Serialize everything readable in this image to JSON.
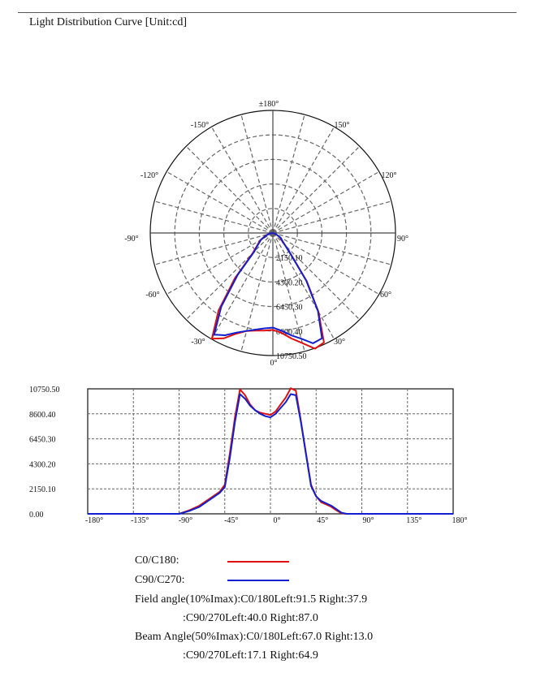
{
  "title": "Light Distribution Curve [Unit:cd]",
  "colors": {
    "c0_c180": "#e01010",
    "c90_c270": "#1020d0",
    "grid": "#666666"
  },
  "chart_data": [
    {
      "type": "line",
      "projection": "polar",
      "title": "",
      "angle_labels": [
        "±180°",
        "150°",
        "120°",
        "90°",
        "60°",
        "30°",
        "0°",
        "-30°",
        "-60°",
        "-90°",
        "-120°",
        "-150°"
      ],
      "radial_labels": [
        "2150.10",
        "4300.20",
        "6450.30",
        "8600.40",
        "10750.50"
      ],
      "rmax": 10750.5,
      "angle_step": 15,
      "series": [
        {
          "name": "C0/C180:",
          "x": [
            -90,
            -80,
            -70,
            -60,
            -50,
            -45,
            -40,
            -35,
            -30,
            -25,
            -20,
            -15,
            -10,
            -5,
            0,
            5,
            10,
            15,
            20,
            25,
            30,
            35,
            40,
            45,
            50,
            55,
            60,
            65,
            70,
            75,
            80,
            85,
            90
          ],
          "values": [
            0,
            300,
            700,
            1300,
            1900,
            2500,
            5200,
            8300,
            10700,
            10200,
            9400,
            8900,
            8700,
            8600,
            8500,
            8800,
            9400,
            10000,
            10800,
            10600,
            8000,
            5200,
            2500,
            1500,
            1000,
            800,
            600,
            300,
            50,
            0,
            0,
            0,
            0
          ]
        },
        {
          "name": "C90/C270:",
          "x": [
            -90,
            -80,
            -70,
            -60,
            -50,
            -45,
            -40,
            -35,
            -30,
            -25,
            -20,
            -15,
            -10,
            -5,
            0,
            5,
            10,
            15,
            20,
            25,
            30,
            35,
            40,
            45,
            50,
            55,
            60,
            65,
            70,
            75,
            80,
            85,
            90
          ],
          "values": [
            0,
            250,
            600,
            1200,
            1800,
            2300,
            4800,
            7900,
            10300,
            9900,
            9300,
            8900,
            8600,
            8400,
            8300,
            8600,
            9100,
            9600,
            10300,
            10200,
            7900,
            5100,
            2400,
            1500,
            1100,
            900,
            700,
            400,
            100,
            0,
            0,
            0,
            0
          ]
        }
      ]
    },
    {
      "type": "line",
      "title": "",
      "xlabel": "",
      "ylabel": "",
      "xlim": [
        -180,
        180
      ],
      "ylim": [
        0,
        10750.5
      ],
      "x_ticks": [
        "-180°",
        "-135°",
        "-90°",
        "-45°",
        "0°",
        "45°",
        "90°",
        "135°",
        "180°"
      ],
      "y_ticks": [
        "0.00",
        "2150.10",
        "4300.20",
        "6450.30",
        "8600.40",
        "10750.50"
      ],
      "grid": true,
      "series": [
        {
          "name": "C0/C180:",
          "x": [
            -180,
            -90,
            -80,
            -70,
            -60,
            -50,
            -45,
            -40,
            -35,
            -30,
            -25,
            -20,
            -15,
            -10,
            -5,
            0,
            5,
            10,
            15,
            20,
            25,
            30,
            35,
            40,
            45,
            50,
            55,
            60,
            65,
            70,
            75,
            80,
            90,
            180
          ],
          "values": [
            0,
            0,
            300,
            700,
            1300,
            1900,
            2500,
            5200,
            8300,
            10700,
            10200,
            9400,
            8900,
            8700,
            8600,
            8500,
            8800,
            9400,
            10000,
            10800,
            10600,
            8000,
            5200,
            2500,
            1500,
            1000,
            800,
            600,
            300,
            50,
            0,
            0,
            0,
            0
          ]
        },
        {
          "name": "C90/C270:",
          "x": [
            -180,
            -90,
            -80,
            -70,
            -60,
            -50,
            -45,
            -40,
            -35,
            -30,
            -25,
            -20,
            -15,
            -10,
            -5,
            0,
            5,
            10,
            15,
            20,
            25,
            30,
            35,
            40,
            45,
            50,
            55,
            60,
            65,
            70,
            75,
            80,
            90,
            180
          ],
          "values": [
            0,
            0,
            250,
            600,
            1200,
            1800,
            2300,
            4800,
            7900,
            10300,
            9900,
            9300,
            8900,
            8600,
            8400,
            8300,
            8600,
            9100,
            9600,
            10300,
            10200,
            7900,
            5100,
            2400,
            1500,
            1100,
            900,
            700,
            400,
            100,
            0,
            0,
            0,
            0
          ]
        }
      ]
    }
  ],
  "legend": [
    {
      "label": "C0/C180:",
      "color": "#e01010"
    },
    {
      "label": "C90/C270:",
      "color": "#1020d0"
    }
  ],
  "notes": [
    "Field angle(10%Imax):C0/180Left:91.5 Right:37.9",
    ":C90/270Left:40.0 Right:87.0",
    "Beam Angle(50%Imax):C0/180Left:67.0 Right:13.0",
    ":C90/270Left:17.1 Right:64.9"
  ]
}
